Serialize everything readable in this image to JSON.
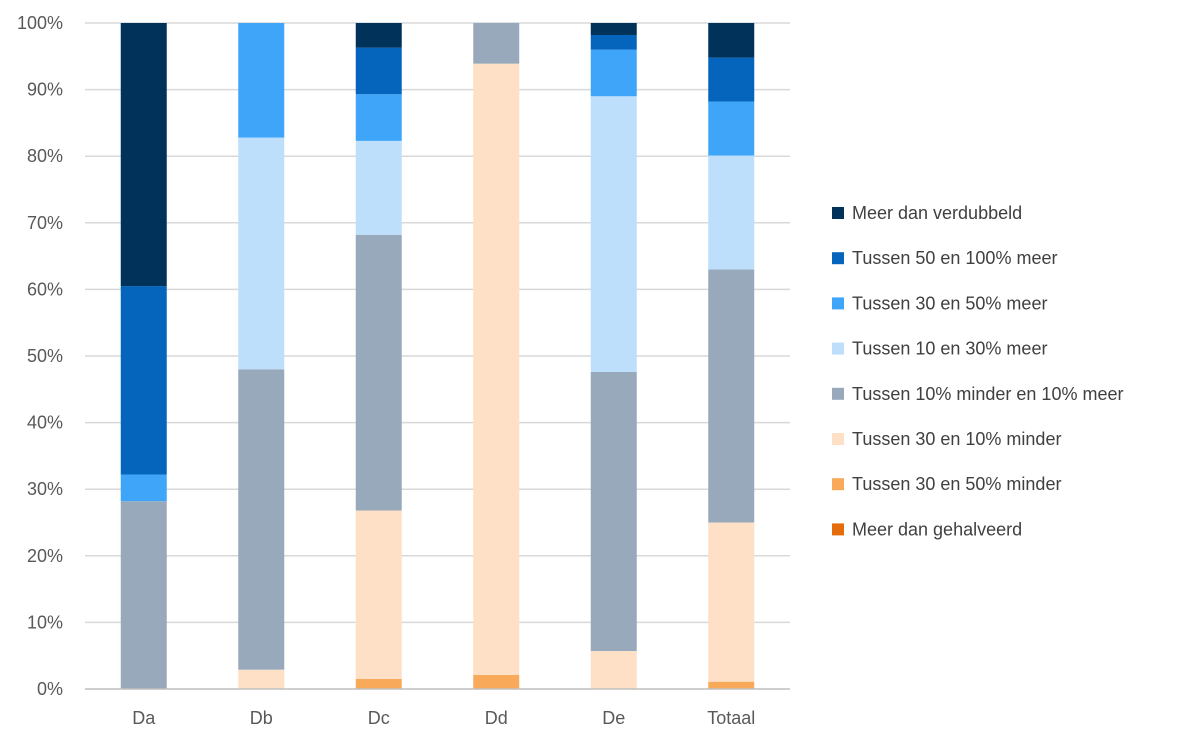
{
  "chart_data": {
    "type": "bar",
    "stacked": "percent",
    "categories": [
      "Da",
      "Db",
      "Dc",
      "Dd",
      "De",
      "Totaal"
    ],
    "series": [
      {
        "name": "Meer dan gehalveerd",
        "color": "#E46C0A",
        "values": [
          0,
          0,
          0,
          0,
          0,
          0
        ]
      },
      {
        "name": "Tussen 30 en 50% minder",
        "color": "#F9A95A",
        "values": [
          0,
          0,
          1.5,
          2.1,
          0,
          1.1
        ]
      },
      {
        "name": "Tussen 30 en 10% minder",
        "color": "#FDE0C5",
        "values": [
          0,
          2.9,
          25.3,
          91.8,
          5.7,
          23.9
        ]
      },
      {
        "name": "Tussen 10% minder en 10% meer",
        "color": "#97A9BA",
        "values": [
          28.2,
          45.1,
          41.4,
          6.1,
          41.9,
          38.0
        ]
      },
      {
        "name": "Tussen 10 en 30% meer",
        "color": "#BDDFFB",
        "values": [
          0,
          34.8,
          14.1,
          0,
          41.4,
          17.1
        ]
      },
      {
        "name": "Tussen 30 en 50% meer",
        "color": "#3FA5F9",
        "values": [
          4.0,
          17.2,
          7.0,
          0,
          7.0,
          8.1
        ]
      },
      {
        "name": "Tussen 50 en 100% meer",
        "color": "#0565BC",
        "values": [
          28.3,
          0,
          7.0,
          0,
          2.2,
          6.6
        ]
      },
      {
        "name": "Meer dan verdubbeld",
        "color": "#00325A",
        "values": [
          39.5,
          0,
          3.7,
          0,
          1.8,
          5.2
        ]
      }
    ],
    "y_ticks": [
      "0%",
      "10%",
      "20%",
      "30%",
      "40%",
      "50%",
      "60%",
      "70%",
      "80%",
      "90%",
      "100%"
    ],
    "ylim": [
      0,
      100
    ],
    "grid": true,
    "legend_position": "right",
    "title": "",
    "xlabel": "",
    "ylabel": ""
  },
  "colors": {
    "grid": "#D9D9D9",
    "axis": "#BFBFBF",
    "tick_text": "#595959",
    "legend_text": "#404040"
  }
}
